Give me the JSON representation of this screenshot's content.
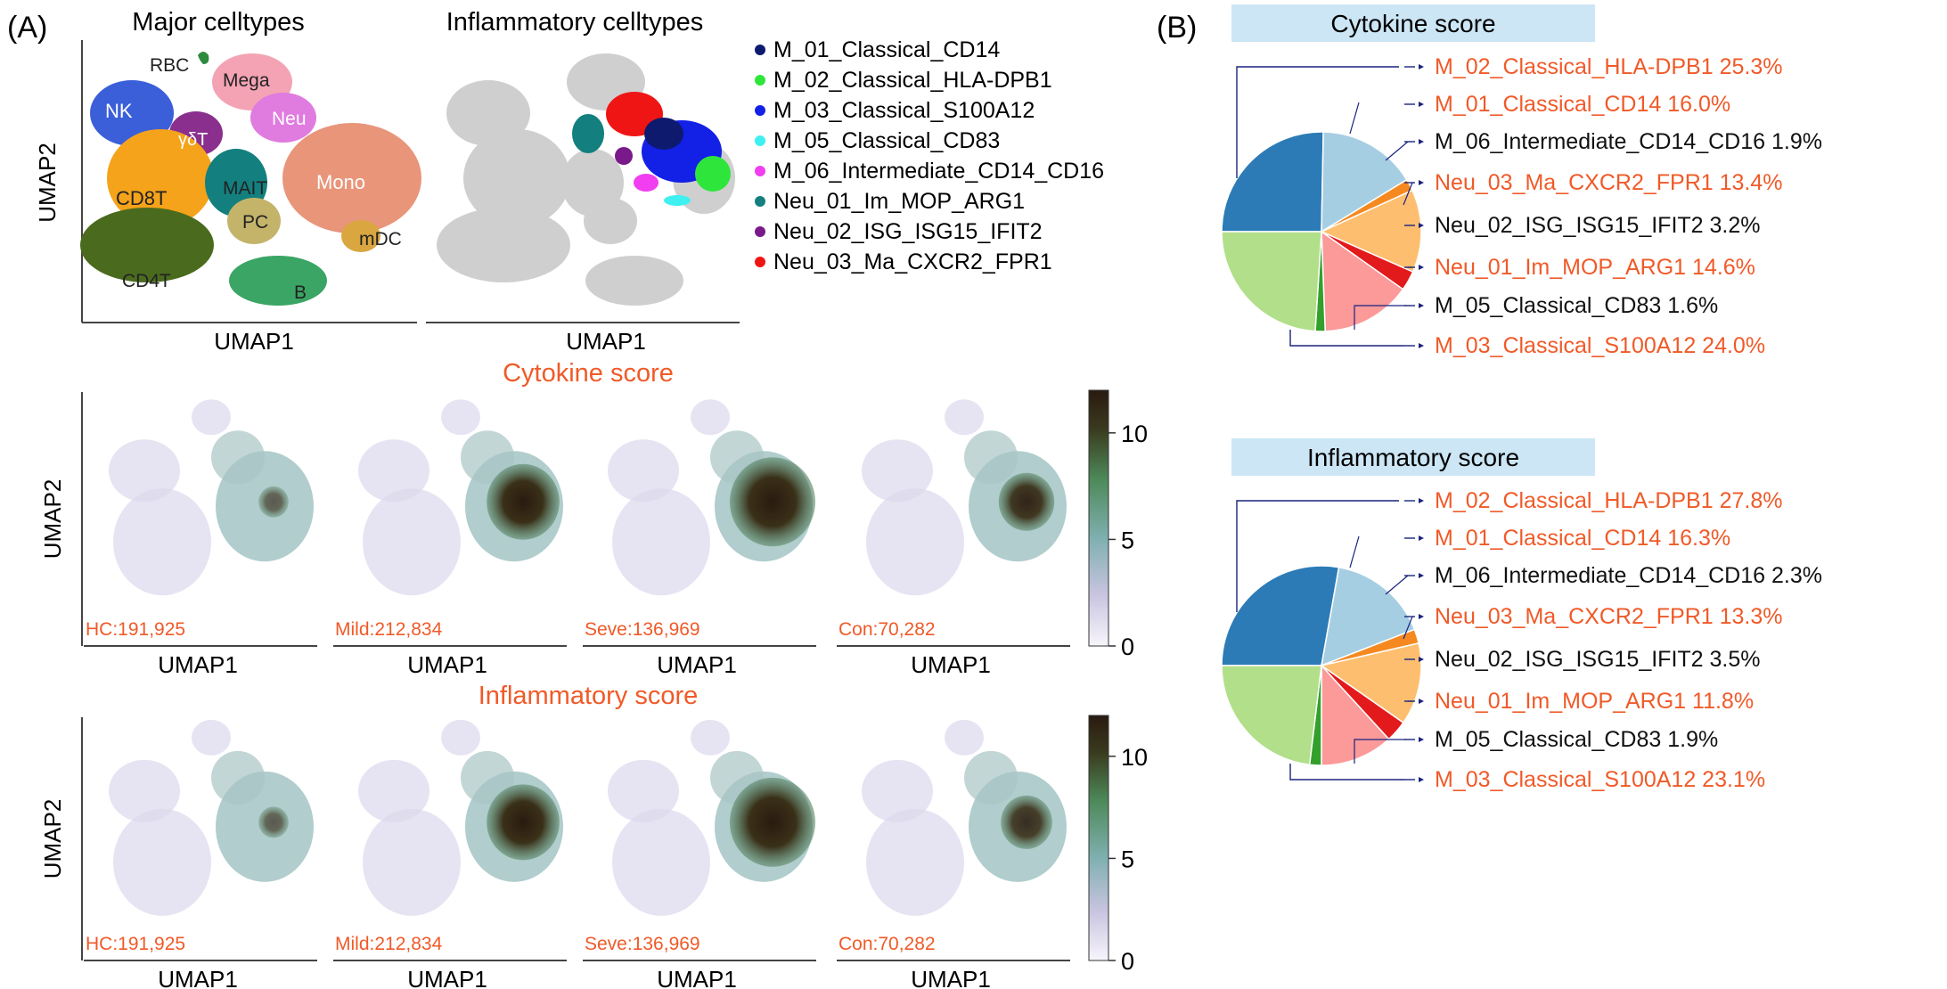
{
  "panel_a": {
    "label": "(A)",
    "umap_major": {
      "title": "Major celltypes",
      "xlabel": "UMAP1",
      "ylabel": "UMAP2",
      "clusters": [
        {
          "name": "RBC",
          "color": "#2e8b3e"
        },
        {
          "name": "Mega",
          "color": "#f4a3b4"
        },
        {
          "name": "NK",
          "color": "#3b5fd9"
        },
        {
          "name": "Neu",
          "color": "#e07be0"
        },
        {
          "name": "γδT",
          "color": "#8a2f8e"
        },
        {
          "name": "CD8T",
          "color": "#f5a31a"
        },
        {
          "name": "MAIT",
          "color": "#137f7f"
        },
        {
          "name": "Mono",
          "color": "#e8957a"
        },
        {
          "name": "PC",
          "color": "#c4b46a"
        },
        {
          "name": "mDC",
          "color": "#d9a640"
        },
        {
          "name": "CD4T",
          "color": "#4a6a1e"
        },
        {
          "name": "B",
          "color": "#3aa564"
        }
      ]
    },
    "umap_inflam": {
      "title": "Inflammatory celltypes",
      "xlabel": "UMAP1",
      "legend": [
        {
          "label": "M_01_Classical_CD14",
          "color": "#0d1a6e"
        },
        {
          "label": "M_02_Classical_HLA-DPB1",
          "color": "#2ee63b"
        },
        {
          "label": "M_03_Classical_S100A12",
          "color": "#1320e6"
        },
        {
          "label": "M_05_Classical_CD83",
          "color": "#3ef0f0"
        },
        {
          "label": "M_06_Intermediate_CD14_CD16",
          "color": "#f03ef0"
        },
        {
          "label": "Neu_01_Im_MOP_ARG1",
          "color": "#137f7f"
        },
        {
          "label": "Neu_02_ISG_ISG15_IFIT2",
          "color": "#7a1a8a"
        },
        {
          "label": "Neu_03_Ma_CXCR2_FPR1",
          "color": "#f01515"
        }
      ]
    },
    "score_rows": [
      {
        "title": "Cytokine score",
        "ylabel": "UMAP2",
        "colorbar_ticks": [
          "10",
          "5",
          "0"
        ],
        "panels": [
          {
            "label": "HC:191,925",
            "xlabel": "UMAP1",
            "intensity": 0.35
          },
          {
            "label": "Mild:212,834",
            "xlabel": "UMAP1",
            "intensity": 0.85
          },
          {
            "label": "Seve:136,969",
            "xlabel": "UMAP1",
            "intensity": 1.0
          },
          {
            "label": "Con:70,282",
            "xlabel": "UMAP1",
            "intensity": 0.65
          }
        ]
      },
      {
        "title": "Inflammatory score",
        "ylabel": "UMAP2",
        "colorbar_ticks": [
          "10",
          "5",
          "0"
        ],
        "panels": [
          {
            "label": "HC:191,925",
            "xlabel": "UMAP1",
            "intensity": 0.35
          },
          {
            "label": "Mild:212,834",
            "xlabel": "UMAP1",
            "intensity": 0.85
          },
          {
            "label": "Seve:136,969",
            "xlabel": "UMAP1",
            "intensity": 1.0
          },
          {
            "label": "Con:70,282",
            "xlabel": "UMAP1",
            "intensity": 0.6
          }
        ]
      }
    ]
  },
  "panel_b": {
    "label": "(B)",
    "highlight_color": "#f05a28",
    "pies": [
      {
        "title": "Cytokine score",
        "labels": [
          {
            "text": "M_02_Classical_HLA-DPB1 25.3%",
            "highlight": true
          },
          {
            "text": "M_01_Classical_CD14 16.0%",
            "highlight": true
          },
          {
            "text": "M_06_Intermediate_CD14_CD16 1.9%",
            "highlight": false
          },
          {
            "text": "Neu_03_Ma_CXCR2_FPR1 13.4%",
            "highlight": true
          },
          {
            "text": "Neu_02_ISG_ISG15_IFIT2 3.2%",
            "highlight": false
          },
          {
            "text": "Neu_01_Im_MOP_ARG1 14.6%",
            "highlight": true
          },
          {
            "text": "M_05_Classical_CD83 1.6%",
            "highlight": false
          },
          {
            "text": "M_03_Classical_S100A12 24.0%",
            "highlight": true
          }
        ]
      },
      {
        "title": "Inflammatory score",
        "labels": [
          {
            "text": "M_02_Classical_HLA-DPB1 27.8%",
            "highlight": true
          },
          {
            "text": "M_01_Classical_CD14 16.3%",
            "highlight": true
          },
          {
            "text": "M_06_Intermediate_CD14_CD16 2.3%",
            "highlight": false
          },
          {
            "text": "Neu_03_Ma_CXCR2_FPR1 13.3%",
            "highlight": true
          },
          {
            "text": "Neu_02_ISG_ISG15_IFIT2 3.5%",
            "highlight": false
          },
          {
            "text": "Neu_01_Im_MOP_ARG1 11.8%",
            "highlight": true
          },
          {
            "text": "M_05_Classical_CD83 1.9%",
            "highlight": false
          },
          {
            "text": "M_03_Classical_S100A12 23.1%",
            "highlight": true
          }
        ]
      }
    ]
  },
  "chart_data": [
    {
      "type": "pie",
      "title": "Cytokine score",
      "labels": [
        "M_02_Classical_HLA-DPB1",
        "M_01_Classical_CD14",
        "M_06_Intermediate_CD14_CD16",
        "Neu_03_Ma_CXCR2_FPR1",
        "Neu_02_ISG_ISG15_IFIT2",
        "Neu_01_Im_MOP_ARG1",
        "M_05_Classical_CD83",
        "M_03_Classical_S100A12"
      ],
      "values": [
        25.3,
        16.0,
        1.9,
        13.4,
        3.2,
        14.6,
        1.6,
        24.0
      ],
      "colors": [
        "#2c7bb6",
        "#a6cee3",
        "#f5891f",
        "#fdbf6f",
        "#e31a1c",
        "#fb9a99",
        "#33a02c",
        "#b2df8a"
      ]
    },
    {
      "type": "pie",
      "title": "Inflammatory score",
      "labels": [
        "M_02_Classical_HLA-DPB1",
        "M_01_Classical_CD14",
        "M_06_Intermediate_CD14_CD16",
        "Neu_03_Ma_CXCR2_FPR1",
        "Neu_02_ISG_ISG15_IFIT2",
        "Neu_01_Im_MOP_ARG1",
        "M_05_Classical_CD83",
        "M_03_Classical_S100A12"
      ],
      "values": [
        27.8,
        16.3,
        2.3,
        13.3,
        3.5,
        11.8,
        1.9,
        23.1
      ],
      "colors": [
        "#2c7bb6",
        "#a6cee3",
        "#f5891f",
        "#fdbf6f",
        "#e31a1c",
        "#fb9a99",
        "#33a02c",
        "#b2df8a"
      ]
    }
  ]
}
